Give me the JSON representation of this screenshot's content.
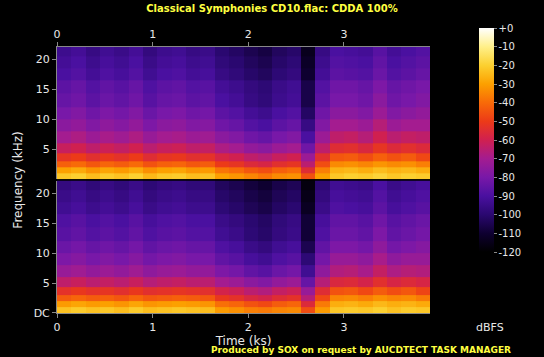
{
  "chart_data": {
    "type": "heatmap",
    "title": "Classical Symphonies CD10.flac: CDDA 100%",
    "x_label": "Time (ks)",
    "y_label": "Frequency (kHz)",
    "colorbar_title": "dBFS",
    "footer": "Produced by SOX on request by AUCDTECT TASK MANAGER",
    "xlim": [
      0,
      3.9
    ],
    "xticks": [
      0,
      1,
      2,
      3
    ],
    "ylim": [
      0,
      22.05
    ],
    "zlim": [
      -120,
      0
    ],
    "zticks": [
      {
        "value": 0,
        "label": "+0"
      },
      -10,
      -20,
      -30,
      -40,
      -50,
      -60,
      -70,
      -80,
      -90,
      -100,
      -110,
      -120
    ],
    "x": [
      0.075,
      0.225,
      0.375,
      0.525,
      0.675,
      0.825,
      0.975,
      1.125,
      1.275,
      1.425,
      1.575,
      1.725,
      1.875,
      2.025,
      2.175,
      2.325,
      2.475,
      2.625,
      2.775,
      2.925,
      3.075,
      3.225,
      3.375,
      3.525,
      3.675,
      3.825
    ],
    "y": [
      0.5,
      1.5,
      2.5,
      3.5,
      5,
      7,
      9,
      11,
      13,
      15.5,
      17.5,
      19.5,
      21.5
    ],
    "channels": [
      {
        "yticks": [
          5,
          10,
          15,
          20
        ],
        "z": [
          [
            -22,
            -20,
            -24,
            -21,
            -23,
            -20,
            -25,
            -22,
            -21,
            -24,
            -23,
            -30,
            -32,
            -35,
            -38,
            -34,
            -33,
            -45,
            -30,
            -22,
            -20,
            -21,
            -19,
            -22,
            -20,
            -21
          ],
          [
            -30,
            -28,
            -32,
            -29,
            -31,
            -28,
            -33,
            -30,
            -29,
            -32,
            -31,
            -38,
            -40,
            -44,
            -46,
            -42,
            -40,
            -55,
            -36,
            -26,
            -25,
            -27,
            -24,
            -26,
            -25,
            -27
          ],
          [
            -42,
            -40,
            -44,
            -41,
            -43,
            -40,
            -45,
            -42,
            -41,
            -44,
            -43,
            -50,
            -52,
            -56,
            -58,
            -54,
            -52,
            -65,
            -46,
            -34,
            -33,
            -35,
            -32,
            -34,
            -33,
            -36
          ],
          [
            -52,
            -50,
            -54,
            -51,
            -53,
            -50,
            -55,
            -52,
            -51,
            -54,
            -53,
            -58,
            -60,
            -64,
            -66,
            -62,
            -60,
            -72,
            -54,
            -44,
            -43,
            -46,
            -42,
            -45,
            -43,
            -47
          ],
          [
            -62,
            -60,
            -64,
            -61,
            -63,
            -60,
            -65,
            -62,
            -61,
            -64,
            -63,
            -68,
            -70,
            -74,
            -76,
            -72,
            -70,
            -82,
            -64,
            -55,
            -54,
            -57,
            -52,
            -56,
            -54,
            -56
          ],
          [
            -70,
            -68,
            -72,
            -69,
            -71,
            -68,
            -73,
            -70,
            -69,
            -72,
            -71,
            -76,
            -78,
            -82,
            -84,
            -80,
            -78,
            -90,
            -72,
            -64,
            -63,
            -66,
            -60,
            -65,
            -63,
            -64
          ],
          [
            -76,
            -74,
            -78,
            -75,
            -77,
            -74,
            -79,
            -76,
            -75,
            -78,
            -77,
            -82,
            -84,
            -88,
            -90,
            -86,
            -84,
            -96,
            -78,
            -70,
            -70,
            -72,
            -66,
            -72,
            -70,
            -70
          ],
          [
            -80,
            -78,
            -82,
            -79,
            -81,
            -78,
            -83,
            -80,
            -79,
            -82,
            -81,
            -86,
            -88,
            -92,
            -94,
            -90,
            -88,
            -102,
            -82,
            -76,
            -76,
            -78,
            -72,
            -78,
            -76,
            -74
          ],
          [
            -84,
            -82,
            -86,
            -83,
            -85,
            -82,
            -87,
            -84,
            -83,
            -86,
            -85,
            -90,
            -92,
            -96,
            -98,
            -94,
            -92,
            -106,
            -86,
            -80,
            -80,
            -82,
            -76,
            -82,
            -80,
            -78
          ],
          [
            -86,
            -84,
            -88,
            -85,
            -87,
            -84,
            -89,
            -86,
            -85,
            -88,
            -87,
            -92,
            -94,
            -97,
            -99,
            -95,
            -93,
            -106,
            -88,
            -82,
            -82,
            -84,
            -79,
            -84,
            -82,
            -80
          ],
          [
            -90,
            -88,
            -92,
            -89,
            -91,
            -88,
            -93,
            -90,
            -89,
            -92,
            -91,
            -96,
            -98,
            -101,
            -103,
            -99,
            -97,
            -110,
            -92,
            -86,
            -87,
            -88,
            -83,
            -88,
            -86,
            -84
          ],
          [
            -92,
            -90,
            -94,
            -91,
            -93,
            -90,
            -95,
            -92,
            -91,
            -94,
            -93,
            -98,
            -100,
            -103,
            -105,
            -101,
            -99,
            -112,
            -94,
            -88,
            -89,
            -90,
            -85,
            -90,
            -88,
            -86
          ],
          [
            -94,
            -92,
            -96,
            -93,
            -95,
            -92,
            -97,
            -94,
            -93,
            -96,
            -95,
            -100,
            -102,
            -105,
            -107,
            -103,
            -101,
            -114,
            -96,
            -90,
            -91,
            -92,
            -87,
            -92,
            -90,
            -88
          ]
        ]
      },
      {
        "yticks": [
          {
            "value": 0,
            "label": "DC"
          },
          5,
          10,
          15,
          20
        ],
        "z": [
          [
            -23,
            -21,
            -23,
            -22,
            -24,
            -21,
            -24,
            -23,
            -22,
            -23,
            -24,
            -31,
            -33,
            -36,
            -37,
            -35,
            -34,
            -46,
            -31,
            -22,
            -21,
            -22,
            -20,
            -23,
            -21,
            -22
          ],
          [
            -31,
            -29,
            -31,
            -30,
            -32,
            -29,
            -32,
            -31,
            -30,
            -31,
            -32,
            -39,
            -41,
            -45,
            -47,
            -43,
            -41,
            -56,
            -37,
            -27,
            -26,
            -28,
            -25,
            -27,
            -26,
            -28
          ],
          [
            -43,
            -41,
            -43,
            -42,
            -44,
            -41,
            -44,
            -43,
            -42,
            -43,
            -44,
            -51,
            -53,
            -57,
            -59,
            -55,
            -53,
            -66,
            -47,
            -35,
            -34,
            -36,
            -33,
            -35,
            -34,
            -37
          ],
          [
            -53,
            -51,
            -53,
            -52,
            -54,
            -51,
            -54,
            -53,
            -52,
            -53,
            -54,
            -59,
            -61,
            -65,
            -67,
            -63,
            -61,
            -73,
            -55,
            -45,
            -44,
            -47,
            -43,
            -46,
            -44,
            -48
          ],
          [
            -64,
            -62,
            -65,
            -63,
            -65,
            -62,
            -66,
            -64,
            -63,
            -65,
            -65,
            -70,
            -72,
            -76,
            -78,
            -74,
            -72,
            -84,
            -66,
            -57,
            -56,
            -59,
            -54,
            -58,
            -56,
            -58
          ],
          [
            -73,
            -71,
            -74,
            -72,
            -74,
            -71,
            -75,
            -73,
            -72,
            -74,
            -74,
            -79,
            -81,
            -85,
            -87,
            -83,
            -81,
            -93,
            -75,
            -67,
            -66,
            -69,
            -63,
            -68,
            -66,
            -67
          ],
          [
            -79,
            -77,
            -80,
            -78,
            -80,
            -77,
            -81,
            -79,
            -78,
            -80,
            -80,
            -85,
            -87,
            -91,
            -93,
            -89,
            -87,
            -99,
            -81,
            -73,
            -73,
            -75,
            -69,
            -75,
            -73,
            -73
          ],
          [
            -83,
            -81,
            -84,
            -82,
            -84,
            -81,
            -85,
            -83,
            -82,
            -84,
            -84,
            -89,
            -91,
            -95,
            -97,
            -93,
            -91,
            -105,
            -85,
            -79,
            -79,
            -81,
            -75,
            -81,
            -79,
            -77
          ],
          [
            -87,
            -85,
            -88,
            -86,
            -88,
            -85,
            -89,
            -87,
            -86,
            -88,
            -88,
            -93,
            -95,
            -99,
            -101,
            -97,
            -95,
            -109,
            -89,
            -83,
            -83,
            -85,
            -79,
            -85,
            -83,
            -81
          ],
          [
            -89,
            -87,
            -90,
            -88,
            -90,
            -87,
            -91,
            -89,
            -88,
            -90,
            -90,
            -95,
            -97,
            -100,
            -102,
            -98,
            -96,
            -109,
            -91,
            -85,
            -85,
            -87,
            -82,
            -87,
            -85,
            -83
          ],
          [
            -93,
            -91,
            -94,
            -92,
            -94,
            -91,
            -95,
            -93,
            -92,
            -94,
            -94,
            -99,
            -101,
            -104,
            -106,
            -102,
            -100,
            -113,
            -95,
            -89,
            -90,
            -91,
            -86,
            -91,
            -89,
            -87
          ],
          [
            -95,
            -93,
            -96,
            -94,
            -96,
            -93,
            -97,
            -95,
            -94,
            -96,
            -96,
            -101,
            -103,
            -106,
            -108,
            -104,
            -102,
            -115,
            -97,
            -91,
            -92,
            -93,
            -88,
            -93,
            -91,
            -89
          ],
          [
            -97,
            -95,
            -98,
            -96,
            -98,
            -95,
            -99,
            -97,
            -96,
            -98,
            -98,
            -103,
            -105,
            -108,
            -110,
            -106,
            -104,
            -117,
            -99,
            -93,
            -94,
            -95,
            -90,
            -95,
            -93,
            -91
          ]
        ]
      }
    ]
  }
}
